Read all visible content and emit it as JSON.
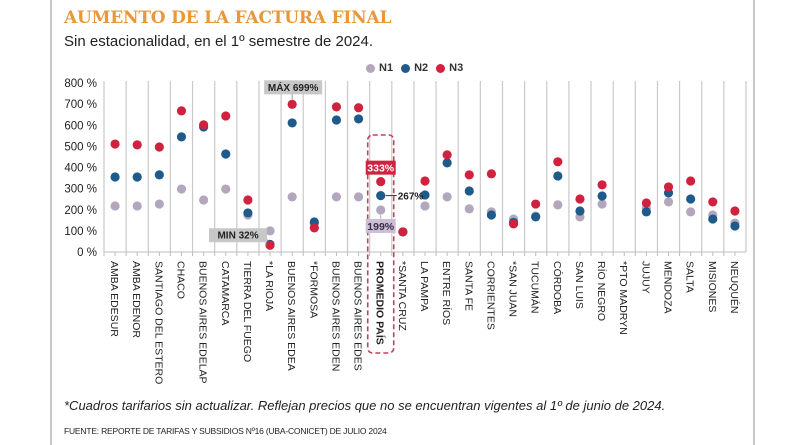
{
  "header": {
    "title": "AUMENTO DE LA FACTURA FINAL",
    "subtitle": "Sin estacionalidad, en el 1º semestre de 2024."
  },
  "footer": {
    "footnote": "*Cuadros tarifarios sin actualizar. Reflejan precios que no se encuentran vigentes al 1º de junio de 2024.",
    "source": "FUENTE: REPORTE DE TARIFAS Y SUBSIDIOS Nº16 (UBA-CONICET) DE JULIO 2024"
  },
  "chart_data": {
    "type": "scatter",
    "title": "AUMENTO DE LA FACTURA FINAL",
    "subtitle": "Sin estacionalidad, en el 1º semestre de 2024.",
    "xlabel": "",
    "ylabel": "",
    "ylim": [
      0,
      800
    ],
    "yticks": [
      0,
      100,
      200,
      300,
      400,
      500,
      600,
      700,
      800
    ],
    "ytick_labels": [
      "0 %",
      "100 %",
      "200 %",
      "300 %",
      "400 %",
      "500 %",
      "600 %",
      "700 %",
      "800 %"
    ],
    "grid": "vertical",
    "legend_position": "top-center",
    "categories": [
      "AMBA EDESUR",
      "AMBA EDENOR",
      "SANTIAGO DEL ESTERO",
      "CHACO",
      "BUENOS AIRES EDELAP",
      "CATAMARCA",
      "TIERRA DEL FUEGO",
      "*LA RIOJA",
      "BUENOS AIRES EDEA",
      "*FORMOSA",
      "BUENOS AIRES EDEN",
      "BUENOS AIRES EDES",
      "PROMEDIO PAÍS",
      "*SANTA CRUZ",
      "LA PAMPA",
      "ENTRE RÍOS",
      "SANTA FE",
      "CORRIENTES",
      "*SAN JUAN",
      "TUCUMÁN",
      "CÓRDOBA",
      "SAN LUIS",
      "RÍO NEGRO",
      "*PTO MADRYN",
      "JUJUY",
      "MENDOZA",
      "SALTA",
      "MISIONES",
      "NEUQUÉN"
    ],
    "highlight_category": "PROMEDIO PAÍS",
    "series": [
      {
        "name": "N1",
        "color": "#b3a7bd",
        "values": [
          218,
          218,
          227,
          298,
          246,
          298,
          175,
          100,
          261,
          135,
          261,
          261,
          199,
          95,
          218,
          261,
          204,
          190,
          156,
          170,
          223,
          166,
          227,
          null,
          208,
          237,
          190,
          175,
          137
        ]
      },
      {
        "name": "N2",
        "color": "#1e5a8a",
        "values": [
          355,
          355,
          365,
          545,
          592,
          464,
          185,
          36,
          611,
          142,
          625,
          630,
          267,
          95,
          270,
          422,
          289,
          175,
          140,
          166,
          360,
          194,
          265,
          null,
          190,
          280,
          251,
          156,
          123
        ]
      },
      {
        "name": "N3",
        "color": "#d0213e",
        "values": [
          511,
          507,
          497,
          668,
          602,
          644,
          246,
          32,
          699,
          114,
          687,
          683,
          333,
          95,
          336,
          460,
          365,
          370,
          133,
          227,
          427,
          251,
          318,
          null,
          232,
          308,
          336,
          237,
          194
        ]
      }
    ],
    "annotations": [
      {
        "text": "MÁX 699%",
        "category": "BUENOS AIRES EDEA",
        "series": "N3",
        "style": "gray-box"
      },
      {
        "text": "MIN 32%",
        "category": "*LA RIOJA",
        "series": "N3",
        "style": "gray-box"
      },
      {
        "text": "333%",
        "category": "PROMEDIO PAÍS",
        "series": "N3",
        "style": "red-box"
      },
      {
        "text": "267%",
        "category": "PROMEDIO PAÍS",
        "series": "N2",
        "style": "leader-line"
      },
      {
        "text": "199%",
        "category": "PROMEDIO PAÍS",
        "series": "N1",
        "style": "purple-box"
      }
    ]
  }
}
